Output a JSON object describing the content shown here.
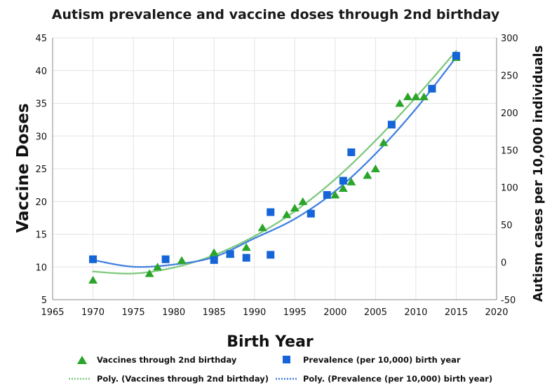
{
  "chart_data": {
    "type": "scatter",
    "title": "Autism prevalence and vaccine doses through 2nd birthday",
    "xlabel": "Birth Year",
    "ylabel": "Vaccine Doses",
    "y2label": "Autism cases per 10,000 individuals",
    "xlim": [
      1965,
      2020
    ],
    "ylim": [
      5,
      45
    ],
    "y2lim": [
      -50,
      300
    ],
    "x_ticks": [
      1965,
      1970,
      1975,
      1980,
      1985,
      1990,
      1995,
      2000,
      2005,
      2010,
      2015,
      2020
    ],
    "y_ticks": [
      5,
      10,
      15,
      20,
      25,
      30,
      35,
      40,
      45
    ],
    "y2_ticks": [
      -50,
      0,
      50,
      100,
      150,
      200,
      250,
      300
    ],
    "grid": true,
    "legend_position": "bottom",
    "series": [
      {
        "name": "Vaccines through 2nd birthday",
        "axis": "left",
        "marker": "triangle",
        "color": "#2aa52a",
        "x": [
          1970,
          1977,
          1978,
          1981,
          1985,
          1987,
          1989,
          1991,
          1994,
          1995,
          1996,
          2000,
          2001,
          2002,
          2004,
          2005,
          2006,
          2008,
          2009,
          2010,
          2011,
          2015
        ],
        "y": [
          8,
          9,
          10,
          11,
          12.2,
          12,
          13,
          16,
          18,
          19,
          20,
          21,
          22,
          23,
          24,
          25,
          29,
          35,
          36,
          36,
          36,
          42
        ]
      },
      {
        "name": "Prevalence (per 10,000) birth year",
        "axis": "right",
        "marker": "square",
        "color": "#1565d8",
        "x": [
          1970,
          1979,
          1985,
          1987,
          1989,
          1992,
          1992,
          1997,
          1999,
          2001,
          2002,
          2007,
          2012,
          2015
        ],
        "y": [
          4,
          4,
          3,
          11,
          6,
          67,
          10,
          65,
          90,
          109,
          147,
          184,
          232,
          276
        ]
      },
      {
        "name": "Poly. (Vaccines through 2nd birthday)",
        "axis": "left",
        "type": "trendline",
        "style": "dotted",
        "color": "#7cc87c",
        "x": [
          1970,
          1975,
          1980,
          1985,
          1990,
          1995,
          2000,
          2005,
          2010,
          2015
        ],
        "y": [
          9.3,
          9.0,
          9.9,
          11.8,
          14.7,
          18.5,
          23.4,
          29.3,
          35.9,
          43.0
        ]
      },
      {
        "name": "Poly. (Prevalence (per 10,000) birth year)",
        "axis": "right",
        "type": "trendline",
        "style": "dotted",
        "color": "#3f7fe0",
        "x": [
          1970,
          1975,
          1980,
          1985,
          1990,
          1995,
          2000,
          2005,
          2010,
          2015
        ],
        "y": [
          3,
          -6,
          -3,
          7,
          32,
          58,
          95,
          145,
          205,
          274
        ]
      }
    ]
  }
}
